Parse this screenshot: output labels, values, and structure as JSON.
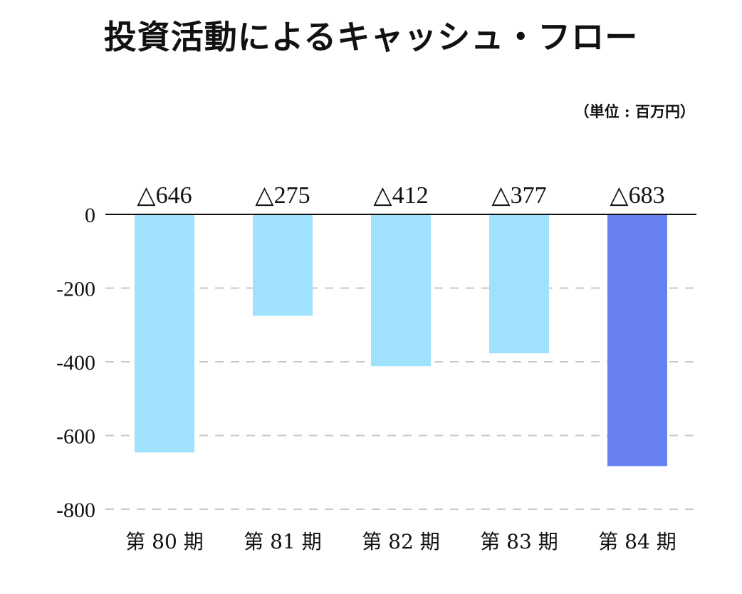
{
  "chart_data": {
    "type": "bar",
    "title": "投資活動によるキャッシュ・フロー",
    "unit_note": "（単位 : 百万円）",
    "categories": [
      "第 80 期",
      "第 81 期",
      "第 82 期",
      "第 83 期",
      "第 84 期"
    ],
    "values": [
      -646,
      -275,
      -412,
      -377,
      -683
    ],
    "data_labels": [
      "△646",
      "△275",
      "△412",
      "△377",
      "△683"
    ],
    "ylim": [
      -800,
      0
    ],
    "yticks": [
      0,
      -200,
      -400,
      -600,
      -800
    ],
    "ytick_labels": [
      "0",
      "-200",
      "-400",
      "-600",
      "-800"
    ],
    "grid": true,
    "colors": {
      "bar": "#a0e2fe",
      "highlight_bar": "#6781f0",
      "gridline": "#c8c8c8",
      "zero_line": "#111111"
    },
    "highlight_index": 4
  }
}
